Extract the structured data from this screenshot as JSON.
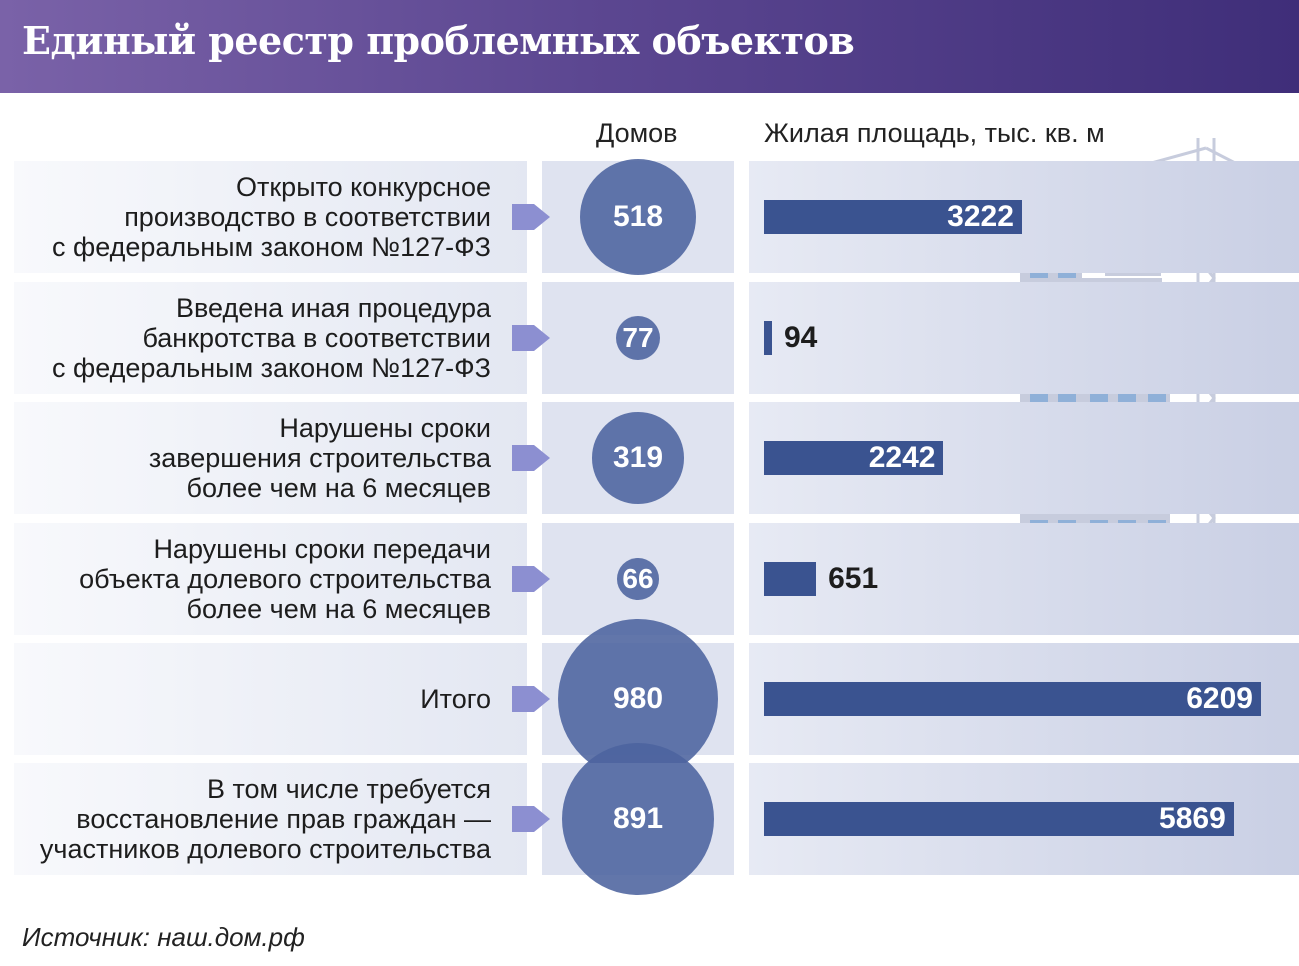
{
  "title": "Единый реестр проблемных объектов",
  "columns": {
    "houses": "Домов",
    "area": "Жилая площадь, тыс. кв. м"
  },
  "source": "Источник: наш.дом.рф",
  "colors": {
    "header_start": "#7a62a8",
    "header_end": "#3f2e79",
    "bar": "#3a5390",
    "circle": "#4c639e",
    "arrow": "#8c8fd1"
  },
  "chart_data": {
    "type": "bar",
    "title": "Единый реестр проблемных объектов",
    "categories": [
      [
        "Открыто конкурсное",
        "производство в соответствии",
        "с федеральным законом №127-ФЗ"
      ],
      [
        "Введена иная процедура",
        "банкротства в соответствии",
        "с федеральным законом №127-ФЗ"
      ],
      [
        "Нарушены сроки",
        "завершения строительства",
        "более чем на 6 месяцев"
      ],
      [
        "Нарушены сроки передачи",
        "объекта долевого строительства",
        "более чем на 6 месяцев"
      ],
      [
        "Итого"
      ],
      [
        "В том числе требуется",
        "восстановление прав граждан —",
        "участников долевого строительства"
      ]
    ],
    "series": [
      {
        "name": "Домов",
        "values": [
          518,
          77,
          319,
          66,
          980,
          891
        ]
      },
      {
        "name": "Жилая площадь, тыс. кв. м",
        "values": [
          3222,
          94,
          2242,
          651,
          6209,
          5869
        ]
      }
    ]
  }
}
